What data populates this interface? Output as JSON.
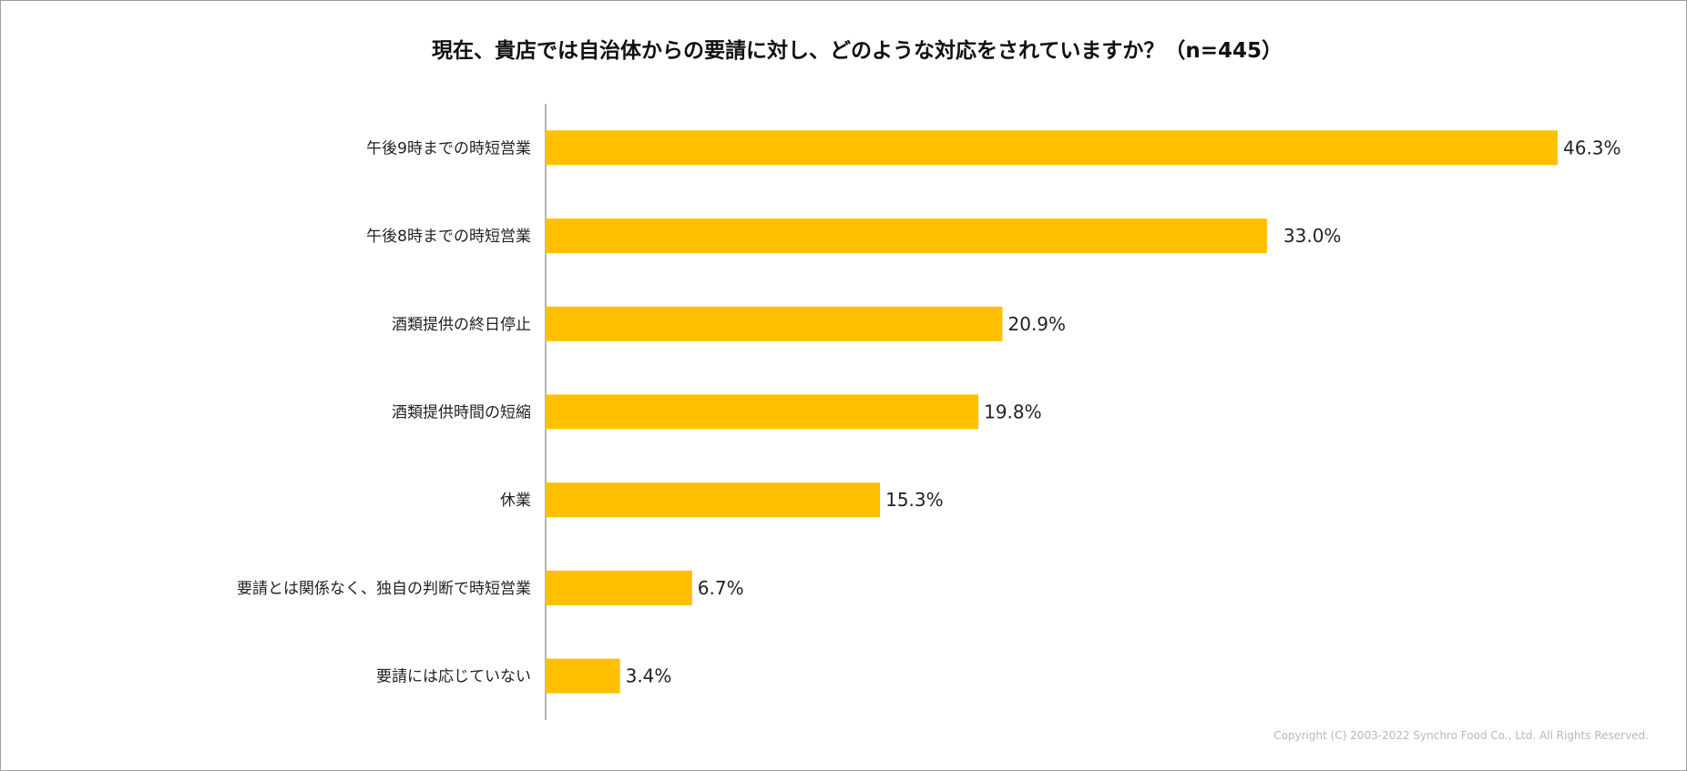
{
  "chart_data": {
    "type": "bar",
    "orientation": "horizontal",
    "title": "現在、貴店では自治体からの要請に対し、どのような対応をされていますか？（n=445）",
    "categories": [
      "午後9時までの時短営業",
      "午後8時までの時短営業",
      "酒類提供の終日停止",
      "酒類提供時間の短縮",
      "休業",
      "要請とは関係なく、独自の判断で時短営業",
      "要請には応じていない"
    ],
    "values": [
      46.3,
      33.0,
      20.9,
      19.8,
      15.3,
      6.7,
      3.4
    ],
    "value_labels": [
      "46.3%",
      "33.0%",
      "20.9%",
      "19.8%",
      "15.3%",
      "6.7%",
      "3.4%"
    ],
    "xlim": [
      0,
      50
    ],
    "grid": false,
    "legend": "none",
    "bar_color": "#FFC000"
  },
  "footer": {
    "copyright": "Copyright (C) 2003-2022 Synchro Food Co., Ltd. All Rights Reserved."
  }
}
